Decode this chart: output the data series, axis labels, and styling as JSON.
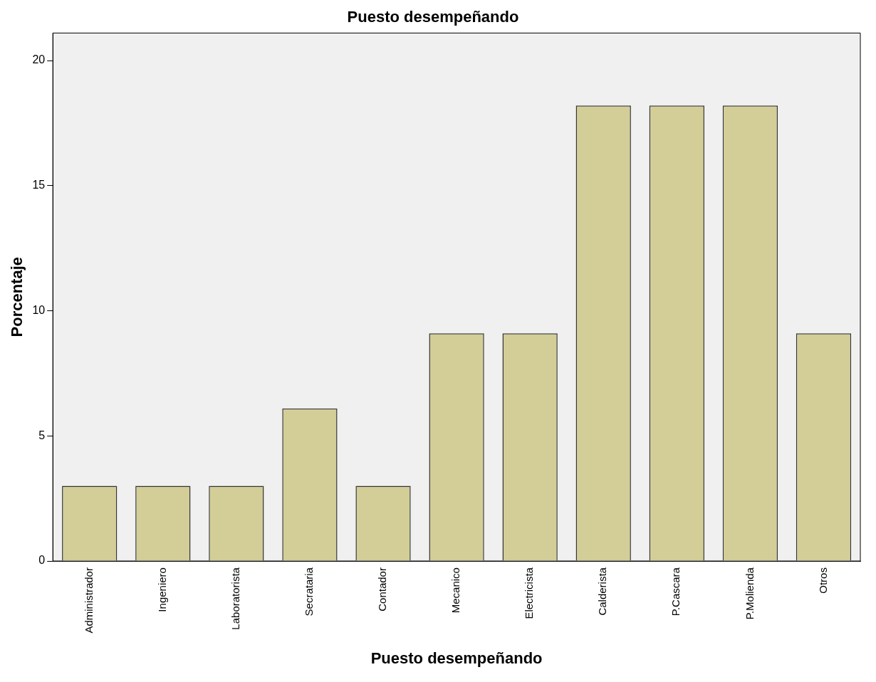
{
  "chart_data": {
    "type": "bar",
    "title": "Puesto desempeñando",
    "xlabel": "Puesto desempeñando",
    "ylabel": "Porcentaje",
    "categories": [
      "Administrador",
      "Ingeniero",
      "Laboratorista",
      "Secrataria",
      "Contador",
      "Mecanico",
      "Electricista",
      "Calderista",
      "P.Cascara",
      "P.Molienda",
      "Otros"
    ],
    "values": [
      3.0,
      3.0,
      3.0,
      6.1,
      3.0,
      9.1,
      9.1,
      18.2,
      18.2,
      18.2,
      9.1
    ],
    "color": "#d3ce97",
    "ylim": [
      0,
      21.1
    ],
    "yticks": [
      0,
      5,
      10,
      15,
      20
    ],
    "grid": false,
    "legend": false
  }
}
